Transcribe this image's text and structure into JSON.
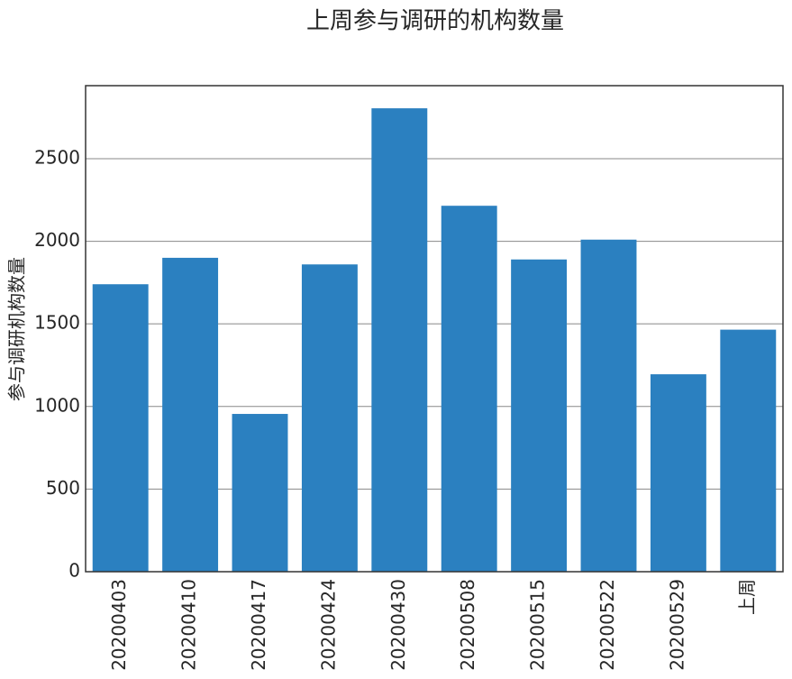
{
  "chart_data": {
    "type": "bar",
    "title": "上周参与调研的机构数量",
    "y_label": "参与调研机构数量",
    "categories": [
      "20200403",
      "20200410",
      "20200417",
      "20200424",
      "20200430",
      "20200508",
      "20200515",
      "20200522",
      "20200529",
      "上周"
    ],
    "values": [
      1740,
      1900,
      955,
      1860,
      2805,
      2215,
      1890,
      2010,
      1195,
      1465
    ],
    "color": "#2b80c0",
    "ylim": [
      0,
      2942
    ],
    "yticks": [
      0,
      500,
      1000,
      1500,
      2000,
      2500
    ],
    "grid": true
  }
}
